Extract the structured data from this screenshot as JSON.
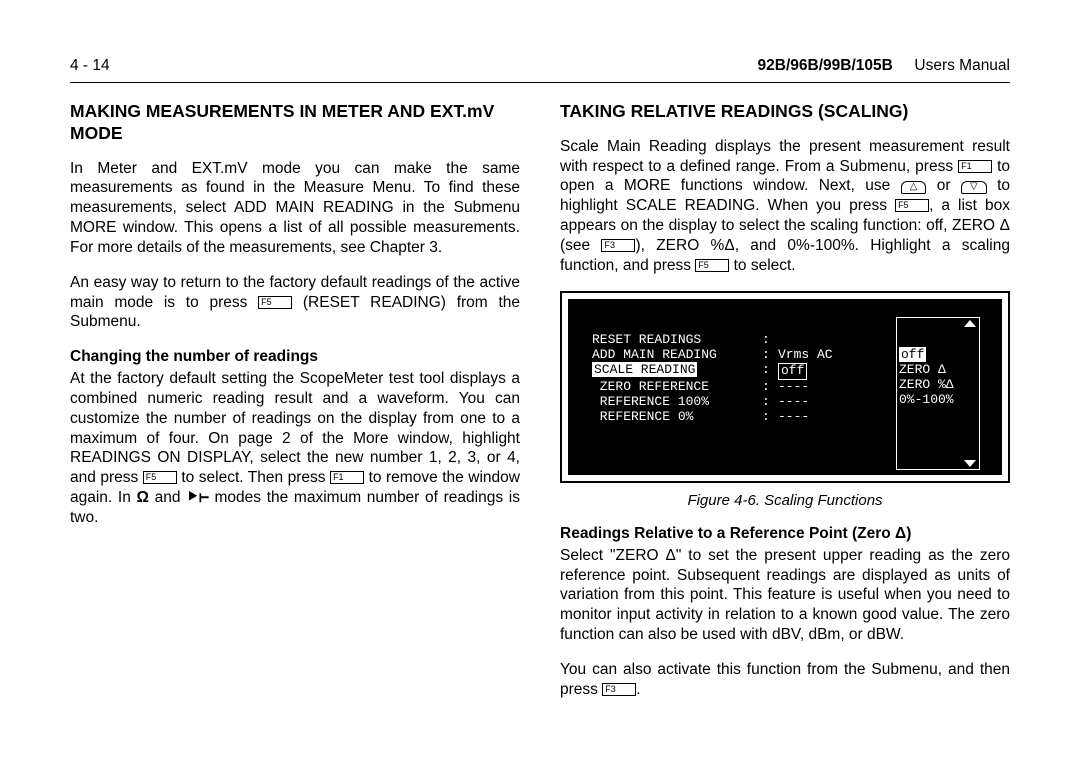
{
  "header": {
    "page_num": "4 - 14",
    "model": "92B/96B/99B/105B",
    "doc_type": "Users Manual"
  },
  "left": {
    "h2": "MAKING MEASUREMENTS IN METER AND EXT.mV MODE",
    "p1a": "In Meter and EXT.mV mode you can make the same measurements as found in the Measure Menu. To find these measurements, select ADD MAIN READING in the Submenu MORE window. This opens a list of all possible measurements. For more details of the measurements, see Chapter 3.",
    "p2a": "An easy way to return to the factory default readings of the active main mode is to press ",
    "p2b": " (RESET READING) from the Submenu.",
    "sub1": "Changing the number of readings",
    "p3a": "At the factory default setting the ScopeMeter test tool displays a combined numeric reading result and a waveform. You can customize the number of readings on the display from one to a maximum of four. On page 2 of the More window, highlight READINGS ON DISPLAY, select the new number 1, 2, 3, or 4, and press ",
    "p3b": " to select. Then press ",
    "p3c": " to remove the window again. In ",
    "p3d": " and ",
    "p3e": " modes the maximum number of readings is two."
  },
  "right": {
    "h2": "TAKING RELATIVE READINGS (SCALING)",
    "p1a": "Scale Main Reading displays the present measurement result with respect to a defined range. From a Submenu, press ",
    "p1b": " to open a MORE functions window. Next, use ",
    "p1c": " or ",
    "p1d": " to highlight SCALE READING. When you press ",
    "p1e": ", a list box appears on the display to select the scaling function: off, ZERO Δ (see ",
    "p1f": "), ZERO %Δ, and 0%-100%. Highlight a scaling function, and press ",
    "p1g": " to select.",
    "caption": "Figure 4-6.   Scaling Functions",
    "sub1": "Readings Relative to a Reference Point (Zero Δ)",
    "p2": "Select \"ZERO Δ\" to set the present upper reading as the zero reference point. Subsequent readings are displayed as units of variation from this point. This feature is useful when you need to monitor input activity in relation to a known good value. The zero function can also be used with dBV, dBm, or dBW.",
    "p3a": "You can also activate this function from the Submenu, and then press ",
    "p3b": "."
  },
  "keys": {
    "f1": "F1",
    "f3": "F3",
    "f5": "F5"
  },
  "lcd": {
    "rows": [
      {
        "label": "RESET READINGS",
        "val": ""
      },
      {
        "label": "ADD MAIN READING",
        "val": "Vrms AC"
      },
      {
        "label": "SCALE READING",
        "val": "off",
        "highlight": true,
        "boxed_val": true
      },
      {
        "label": " ZERO REFERENCE",
        "val": "----"
      },
      {
        "label": " REFERENCE 100%",
        "val": "----"
      },
      {
        "label": " REFERENCE 0%",
        "val": "----"
      }
    ],
    "listbox": [
      "off",
      "ZERO Δ",
      "ZERO %Δ",
      "0%-100%"
    ]
  },
  "symbols": {
    "ohm": "Ω",
    "diode": "⯈⊢",
    "up": "△",
    "down": "▽"
  }
}
